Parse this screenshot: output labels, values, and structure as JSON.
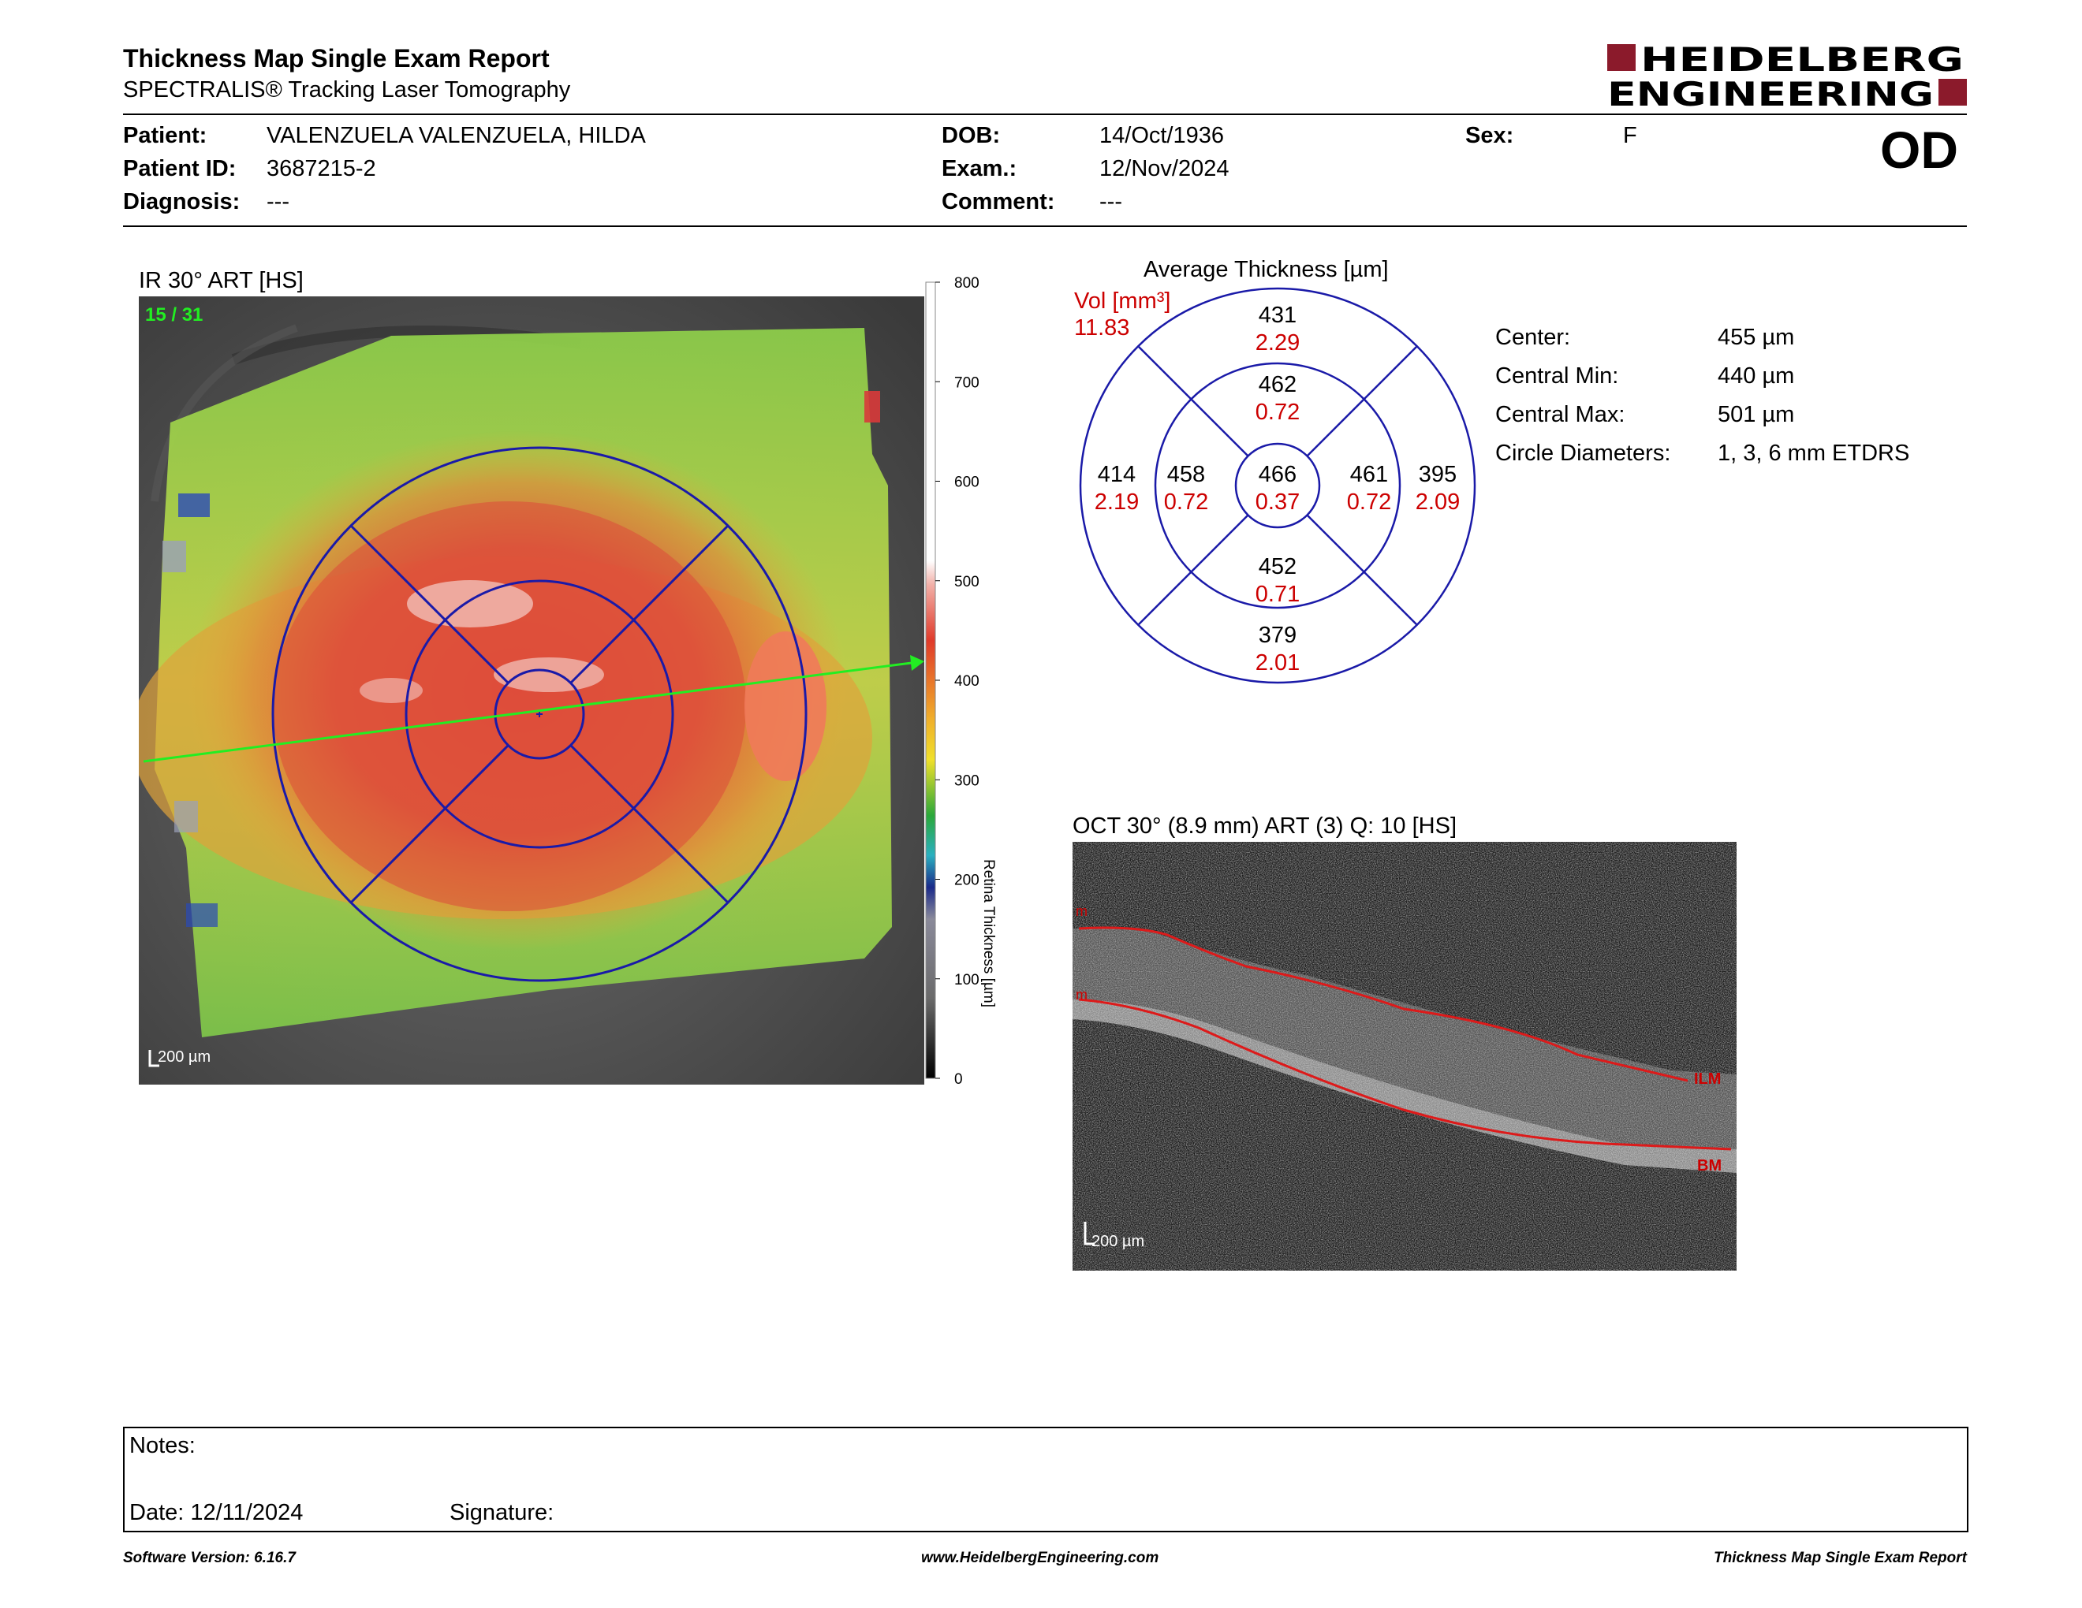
{
  "header": {
    "title": "Thickness Map Single Exam Report",
    "subtitle": "SPECTRALIS® Tracking Laser Tomography",
    "logo_line1": "HEIDELBERG",
    "logo_line2": "ENGINEERING",
    "eye": "OD"
  },
  "patient": {
    "patient_label": "Patient:",
    "patient_value": "VALENZUELA VALENZUELA, HILDA",
    "id_label": "Patient ID:",
    "id_value": "3687215-2",
    "diagnosis_label": "Diagnosis:",
    "diagnosis_value": "---",
    "dob_label": "DOB:",
    "dob_value": "14/Oct/1936",
    "exam_label": "Exam.:",
    "exam_value": "12/Nov/2024",
    "comment_label": "Comment:",
    "comment_value": "---",
    "sex_label": "Sex:",
    "sex_value": "F"
  },
  "fundus": {
    "title": "IR 30° ART [HS]",
    "frame_counter": "15 / 31",
    "scale_label": "200 µm"
  },
  "colorbar": {
    "ticks": [
      "800",
      "700",
      "600",
      "500",
      "400",
      "300",
      "200",
      "100",
      "0"
    ],
    "label": "Retina  Thickness [µm]",
    "colors": {
      "high": "#ffffff",
      "red": "#e03a2a",
      "yellow": "#f0e02a",
      "green": "#2aa83a",
      "blue": "#1a2a8a",
      "low": "#000000"
    }
  },
  "etdrs": {
    "title": "Average Thickness [µm]",
    "vol_label": "Vol [mm³]",
    "vol_total": "11.83",
    "center": {
      "thickness": "466",
      "volume": "0.37"
    },
    "inner_superior": {
      "thickness": "462",
      "volume": "0.72"
    },
    "inner_nasal": {
      "thickness": "461",
      "volume": "0.72"
    },
    "inner_inferior": {
      "thickness": "452",
      "volume": "0.71"
    },
    "inner_temporal": {
      "thickness": "458",
      "volume": "0.72"
    },
    "outer_superior": {
      "thickness": "431",
      "volume": "2.29"
    },
    "outer_nasal": {
      "thickness": "395",
      "volume": "2.09"
    },
    "outer_inferior": {
      "thickness": "379",
      "volume": "2.01"
    },
    "outer_temporal": {
      "thickness": "414",
      "volume": "2.19"
    },
    "colors": {
      "ring": "#1a1aa8",
      "thickness": "#000000",
      "volume": "#cc0000"
    }
  },
  "stats": {
    "center_label": "Center:",
    "center_value": "455 µm",
    "min_label": "Central Min:",
    "min_value": "440 µm",
    "max_label": "Central Max:",
    "max_value": "501 µm",
    "diam_label": "Circle Diameters:",
    "diam_value": "1, 3, 6 mm ETDRS"
  },
  "oct": {
    "title": "OCT 30° (8.9 mm) ART (3) Q: 10 [HS]",
    "ilm_label": "ILM",
    "bm_label": "BM",
    "scale_label": "200 µm"
  },
  "notes": {
    "notes_label": "Notes:",
    "date_label": "Date: 12/11/2024",
    "signature_label": "Signature:"
  },
  "footer": {
    "software": "Software Version: 6.16.7",
    "website": "www.HeidelbergEngineering.com",
    "report_name": "Thickness Map Single Exam Report"
  }
}
